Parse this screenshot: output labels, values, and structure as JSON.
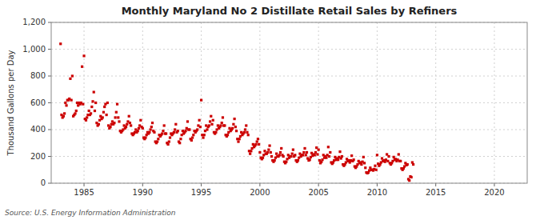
{
  "chart_data": {
    "type": "scatter",
    "title": "Monthly Maryland No 2 Distillate Retail Sales by Refiners",
    "ylabel": "Thousand Gallons per Day",
    "source": "Source: U.S. Energy Information Administration",
    "xlim": [
      1982.2,
      2022.8
    ],
    "ylim": [
      0,
      1200
    ],
    "xticks": [
      1985,
      1990,
      1995,
      2000,
      2005,
      2010,
      2015,
      2020
    ],
    "yticks": [
      0,
      200,
      400,
      600,
      800,
      {
        "value": 1000,
        "label": "1,000"
      },
      {
        "value": 1200,
        "label": "1,200"
      }
    ],
    "grid": true,
    "color": "#cc0000",
    "marker": "square",
    "x": [
      1983.0,
      1983.083,
      1983.167,
      1983.25,
      1983.333,
      1983.417,
      1983.5,
      1983.583,
      1983.667,
      1983.75,
      1983.833,
      1983.917,
      1984.0,
      1984.083,
      1984.167,
      1984.25,
      1984.333,
      1984.417,
      1984.5,
      1984.583,
      1984.667,
      1984.75,
      1984.833,
      1984.917,
      1985.0,
      1985.083,
      1985.167,
      1985.25,
      1985.333,
      1985.417,
      1985.5,
      1985.583,
      1985.667,
      1985.75,
      1985.833,
      1985.917,
      1986.0,
      1986.083,
      1986.167,
      1986.25,
      1986.333,
      1986.417,
      1986.5,
      1986.583,
      1986.667,
      1986.75,
      1986.833,
      1986.917,
      1987.0,
      1987.083,
      1987.167,
      1987.25,
      1987.333,
      1987.417,
      1987.5,
      1987.583,
      1987.667,
      1987.75,
      1987.833,
      1987.917,
      1988.0,
      1988.083,
      1988.167,
      1988.25,
      1988.333,
      1988.417,
      1988.5,
      1988.583,
      1988.667,
      1988.75,
      1988.833,
      1988.917,
      1989.0,
      1989.083,
      1989.167,
      1989.25,
      1989.333,
      1989.417,
      1989.5,
      1989.583,
      1989.667,
      1989.75,
      1989.833,
      1989.917,
      1990.0,
      1990.083,
      1990.167,
      1990.25,
      1990.333,
      1990.417,
      1990.5,
      1990.583,
      1990.667,
      1990.75,
      1990.833,
      1990.917,
      1991.0,
      1991.083,
      1991.167,
      1991.25,
      1991.333,
      1991.417,
      1991.5,
      1991.583,
      1991.667,
      1991.75,
      1991.833,
      1991.917,
      1992.0,
      1992.083,
      1992.167,
      1992.25,
      1992.333,
      1992.417,
      1992.5,
      1992.583,
      1992.667,
      1992.75,
      1992.833,
      1992.917,
      1993.0,
      1993.083,
      1993.167,
      1993.25,
      1993.333,
      1993.417,
      1993.5,
      1993.583,
      1993.667,
      1993.75,
      1993.833,
      1993.917,
      1994.0,
      1994.083,
      1994.167,
      1994.25,
      1994.333,
      1994.417,
      1994.5,
      1994.583,
      1994.667,
      1994.75,
      1994.833,
      1994.917,
      1995.0,
      1995.083,
      1995.167,
      1995.25,
      1995.333,
      1995.417,
      1995.5,
      1995.583,
      1995.667,
      1995.75,
      1995.833,
      1995.917,
      1996.0,
      1996.083,
      1996.167,
      1996.25,
      1996.333,
      1996.417,
      1996.5,
      1996.583,
      1996.667,
      1996.75,
      1996.833,
      1996.917,
      1997.0,
      1997.083,
      1997.167,
      1997.25,
      1997.333,
      1997.417,
      1997.5,
      1997.583,
      1997.667,
      1997.75,
      1997.833,
      1997.917,
      1998.0,
      1998.083,
      1998.167,
      1998.25,
      1998.333,
      1998.417,
      1998.5,
      1998.583,
      1998.667,
      1998.75,
      1998.833,
      1998.917,
      1999.0,
      1999.083,
      1999.167,
      1999.25,
      1999.333,
      1999.417,
      1999.5,
      1999.583,
      1999.667,
      1999.75,
      1999.833,
      1999.917,
      2000.0,
      2000.083,
      2000.167,
      2000.25,
      2000.333,
      2000.417,
      2000.5,
      2000.583,
      2000.667,
      2000.75,
      2000.833,
      2000.917,
      2001.0,
      2001.083,
      2001.167,
      2001.25,
      2001.333,
      2001.417,
      2001.5,
      2001.583,
      2001.667,
      2001.75,
      2001.833,
      2001.917,
      2002.0,
      2002.083,
      2002.167,
      2002.25,
      2002.333,
      2002.417,
      2002.5,
      2002.583,
      2002.667,
      2002.75,
      2002.833,
      2002.917,
      2003.0,
      2003.083,
      2003.167,
      2003.25,
      2003.333,
      2003.417,
      2003.5,
      2003.583,
      2003.667,
      2003.75,
      2003.833,
      2003.917,
      2004.0,
      2004.083,
      2004.167,
      2004.25,
      2004.333,
      2004.417,
      2004.5,
      2004.583,
      2004.667,
      2004.75,
      2004.833,
      2004.917,
      2005.0,
      2005.083,
      2005.167,
      2005.25,
      2005.333,
      2005.417,
      2005.5,
      2005.583,
      2005.667,
      2005.75,
      2005.833,
      2005.917,
      2006.0,
      2006.083,
      2006.167,
      2006.25,
      2006.333,
      2006.417,
      2006.5,
      2006.583,
      2006.667,
      2006.75,
      2006.833,
      2006.917,
      2007.0,
      2007.083,
      2007.167,
      2007.25,
      2007.333,
      2007.417,
      2007.5,
      2007.583,
      2007.667,
      2007.75,
      2007.833,
      2007.917,
      2008.0,
      2008.083,
      2008.167,
      2008.25,
      2008.333,
      2008.417,
      2008.5,
      2008.583,
      2008.667,
      2008.75,
      2008.833,
      2008.917,
      2009.0,
      2009.083,
      2009.167,
      2009.25,
      2009.333,
      2009.417,
      2009.5,
      2009.583,
      2009.667,
      2009.75,
      2009.833,
      2009.917,
      2010.0,
      2010.083,
      2010.167,
      2010.25,
      2010.333,
      2010.417,
      2010.5,
      2010.583,
      2010.667,
      2010.75,
      2010.833,
      2010.917,
      2011.0,
      2011.083,
      2011.167,
      2011.25,
      2011.333,
      2011.417,
      2011.5,
      2011.583,
      2011.667,
      2011.75,
      2011.833,
      2011.917,
      2012.0,
      2012.083,
      2012.167,
      2012.25,
      2012.333,
      2012.417,
      2012.5,
      2012.583,
      2012.667,
      2012.75,
      2012.833,
      2012.917,
      2013.0,
      2013.083
    ],
    "values": [
      1040,
      510,
      490,
      500,
      520,
      600,
      580,
      620,
      620,
      630,
      780,
      620,
      800,
      500,
      510,
      520,
      540,
      600,
      580,
      600,
      590,
      600,
      870,
      590,
      950,
      480,
      470,
      490,
      510,
      540,
      510,
      520,
      570,
      610,
      680,
      540,
      600,
      450,
      430,
      440,
      470,
      500,
      480,
      490,
      530,
      570,
      590,
      510,
      600,
      430,
      410,
      420,
      440,
      460,
      440,
      450,
      490,
      530,
      590,
      490,
      460,
      390,
      380,
      390,
      400,
      430,
      410,
      420,
      440,
      460,
      500,
      450,
      430,
      370,
      360,
      370,
      380,
      400,
      380,
      390,
      410,
      430,
      470,
      420,
      410,
      340,
      330,
      340,
      360,
      380,
      370,
      380,
      400,
      420,
      450,
      390,
      380,
      310,
      300,
      310,
      330,
      360,
      350,
      360,
      370,
      390,
      430,
      370,
      370,
      300,
      290,
      310,
      340,
      370,
      360,
      370,
      380,
      400,
      440,
      380,
      390,
      310,
      300,
      330,
      360,
      390,
      370,
      380,
      390,
      410,
      460,
      400,
      400,
      330,
      320,
      340,
      360,
      390,
      380,
      390,
      400,
      430,
      470,
      420,
      620,
      360,
      340,
      360,
      390,
      430,
      400,
      420,
      430,
      460,
      500,
      440,
      470,
      380,
      370,
      380,
      400,
      430,
      410,
      420,
      430,
      450,
      490,
      430,
      430,
      360,
      350,
      360,
      380,
      410,
      390,
      400,
      410,
      440,
      480,
      420,
      390,
      330,
      310,
      330,
      350,
      380,
      360,
      370,
      380,
      400,
      430,
      380,
      360,
      240,
      220,
      240,
      260,
      290,
      270,
      280,
      290,
      310,
      330,
      290,
      230,
      190,
      180,
      190,
      210,
      240,
      220,
      220,
      230,
      250,
      280,
      230,
      200,
      170,
      160,
      170,
      190,
      220,
      200,
      200,
      210,
      230,
      260,
      210,
      200,
      160,
      150,
      160,
      180,
      210,
      190,
      200,
      200,
      220,
      250,
      200,
      210,
      170,
      160,
      170,
      190,
      220,
      200,
      210,
      210,
      230,
      260,
      210,
      230,
      185,
      170,
      175,
      195,
      225,
      205,
      215,
      210,
      230,
      265,
      215,
      250,
      170,
      150,
      160,
      175,
      210,
      190,
      200,
      190,
      210,
      270,
      200,
      230,
      155,
      145,
      155,
      170,
      195,
      175,
      185,
      175,
      195,
      235,
      185,
      200,
      140,
      130,
      140,
      155,
      180,
      165,
      170,
      155,
      170,
      205,
      165,
      175,
      125,
      115,
      125,
      140,
      165,
      150,
      155,
      140,
      160,
      195,
      150,
      115,
      80,
      75,
      80,
      95,
      115,
      100,
      100,
      95,
      105,
      130,
      100,
      210,
      145,
      130,
      140,
      155,
      185,
      165,
      170,
      160,
      175,
      215,
      165,
      200,
      150,
      140,
      150,
      165,
      195,
      175,
      180,
      165,
      175,
      215,
      165,
      165,
      110,
      100,
      110,
      125,
      150,
      135,
      140,
      30,
      20,
      50,
      45,
      155,
      140
    ]
  }
}
